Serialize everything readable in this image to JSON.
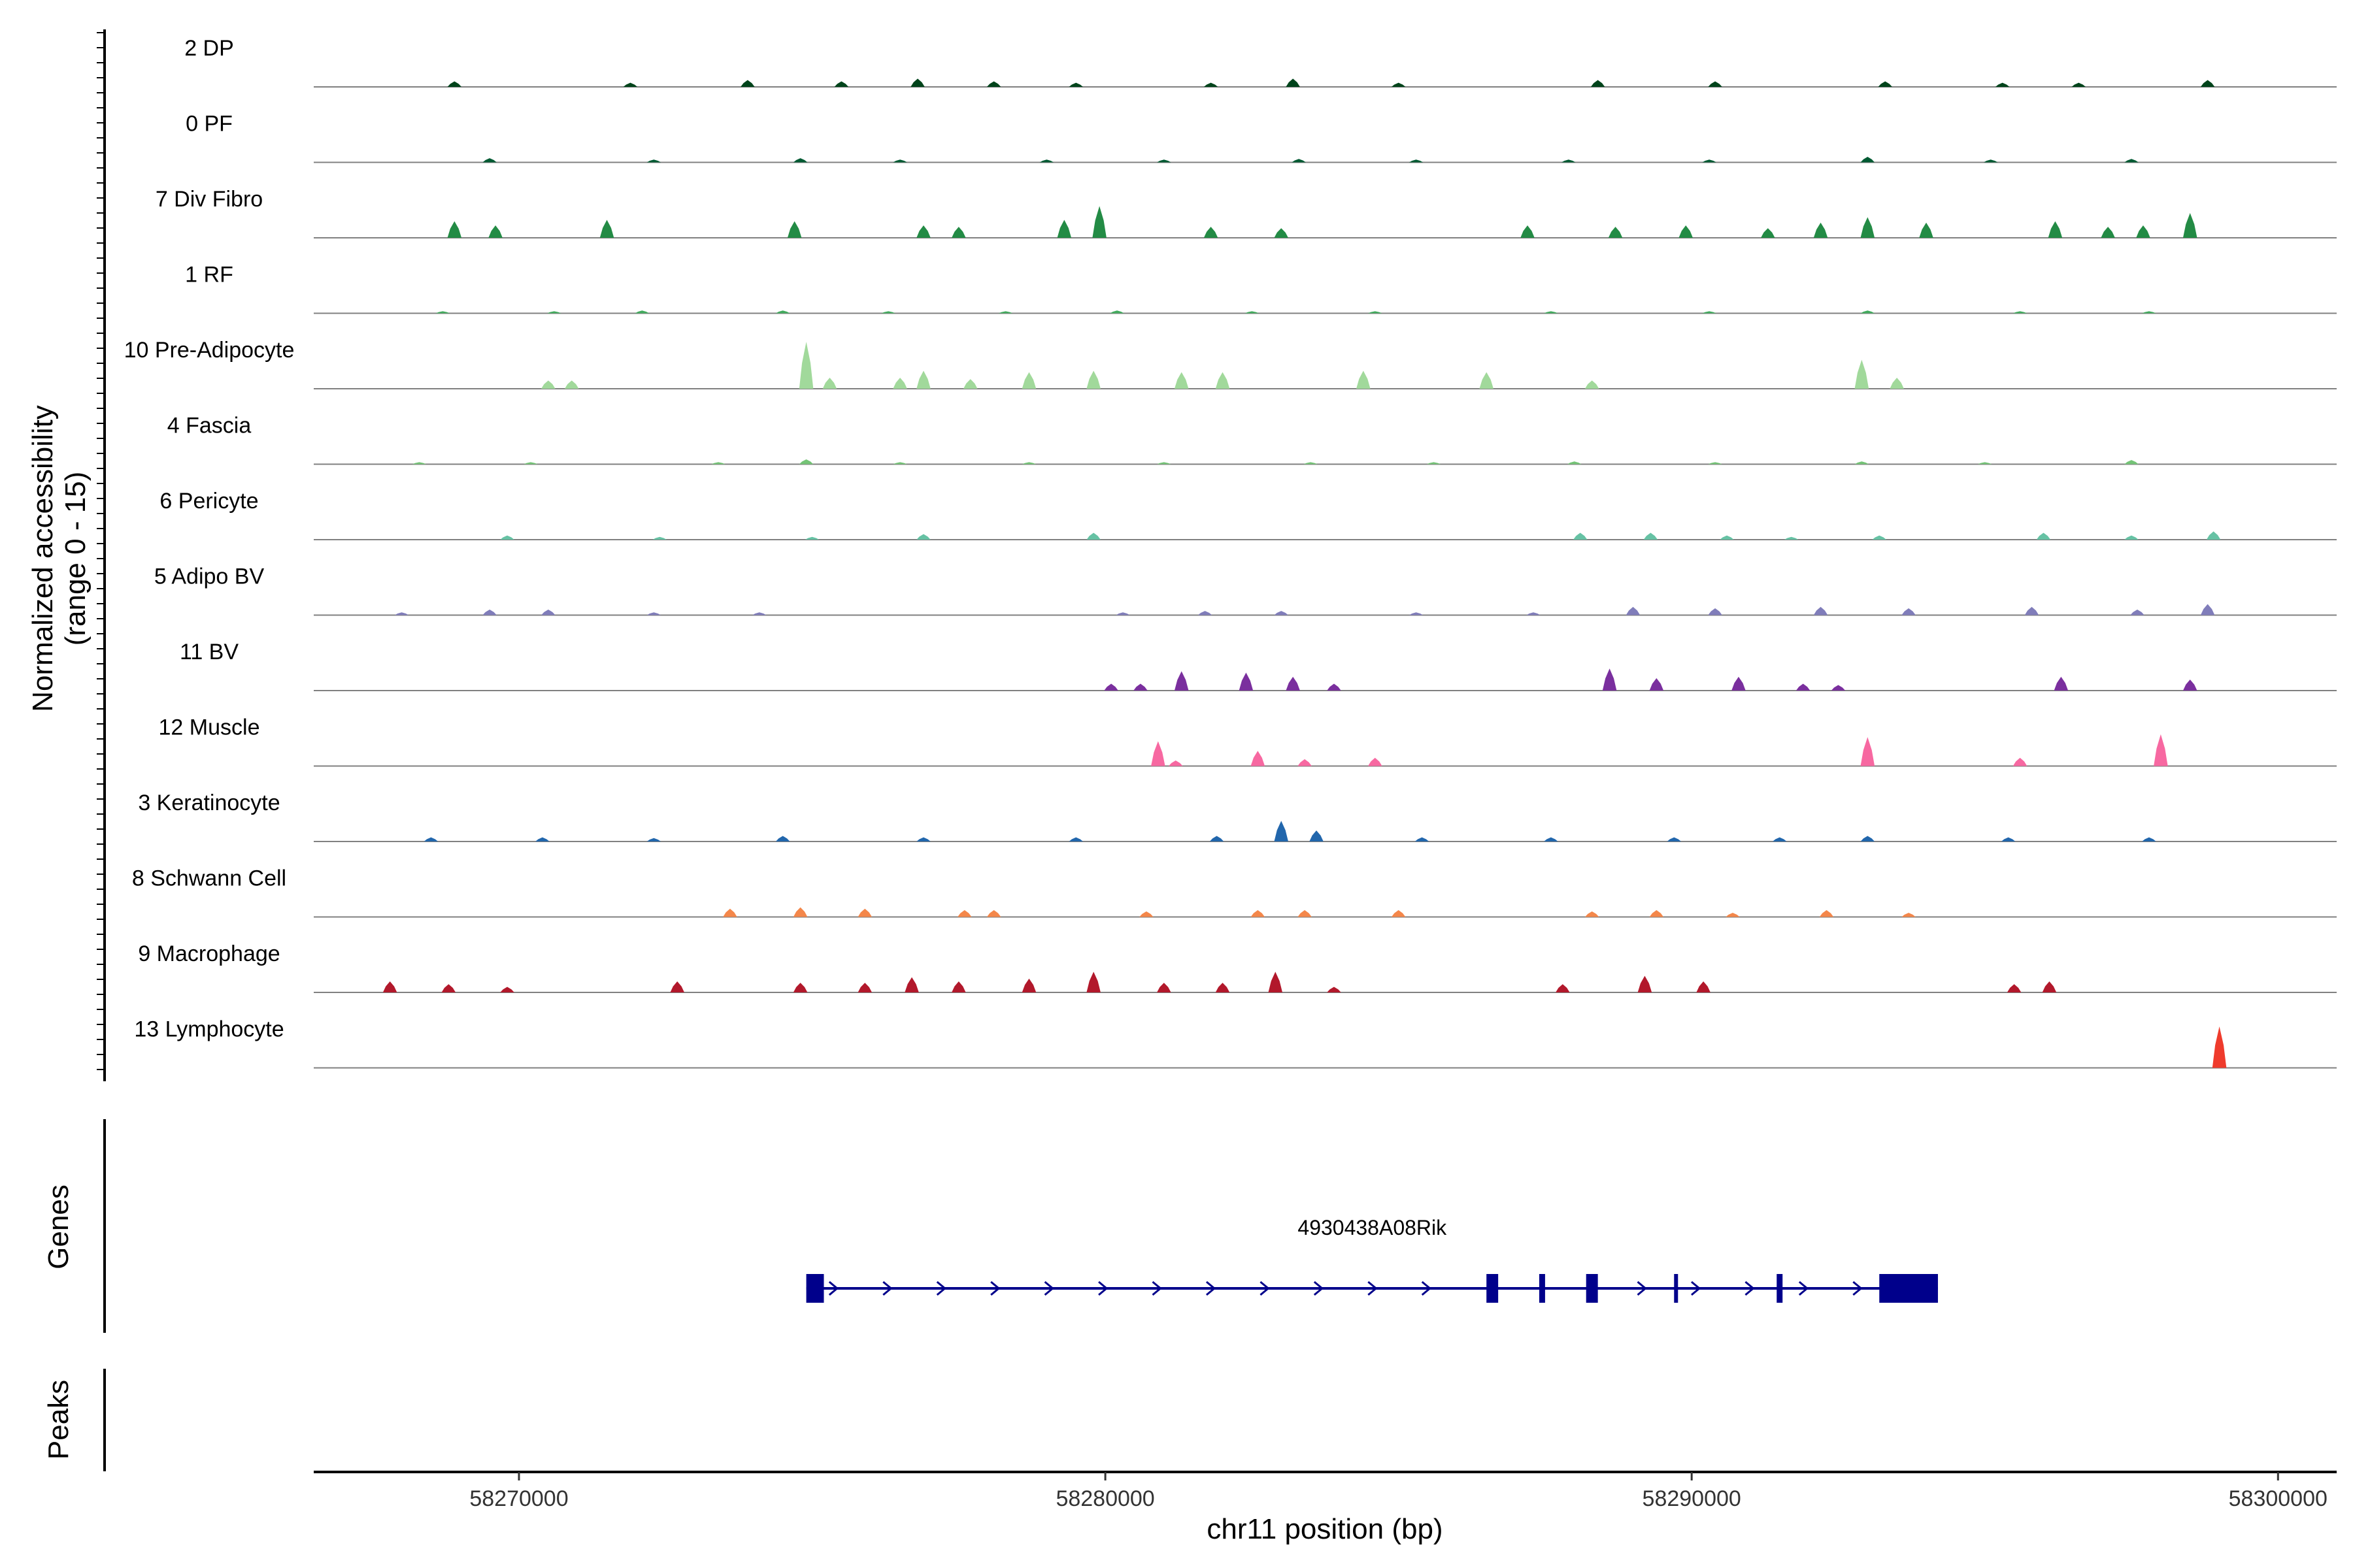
{
  "chart_data": {
    "type": "genome-browser-coverage",
    "xlabel": "chr11 position (bp)",
    "ylabel_line1": "Normalized accessibility",
    "ylabel_line2": "(range 0 - 15)",
    "yrange": [
      0,
      15
    ],
    "xlim": [
      58266500,
      58301000
    ],
    "xticks": [
      {
        "value": 58270000,
        "label": "58270000"
      },
      {
        "value": 58280000,
        "label": "58280000"
      },
      {
        "value": 58290000,
        "label": "58290000"
      },
      {
        "value": 58300000,
        "label": "58300000"
      }
    ],
    "genes_label": "Genes",
    "peaks_label": "Peaks",
    "gene": {
      "name": "4930438A08Rik",
      "start": 58274900,
      "end": 58294200,
      "strand": "+",
      "color": "#00008b",
      "exons": [
        [
          58274900,
          58275200
        ],
        [
          58286500,
          58286700
        ],
        [
          58287400,
          58287500
        ],
        [
          58288200,
          58288400
        ],
        [
          58289700,
          58289760
        ],
        [
          58291450,
          58291550
        ],
        [
          58293200,
          58294200
        ]
      ]
    },
    "tracks": [
      {
        "name": "2 DP",
        "color": "#00441b",
        "peaks": [
          [
            58268900,
            0.4
          ],
          [
            58271900,
            0.3
          ],
          [
            58273900,
            0.5
          ],
          [
            58275500,
            0.4
          ],
          [
            58276800,
            0.6
          ],
          [
            58278100,
            0.4
          ],
          [
            58279500,
            0.3
          ],
          [
            58281800,
            0.3
          ],
          [
            58283200,
            0.6
          ],
          [
            58285000,
            0.3
          ],
          [
            58288400,
            0.5
          ],
          [
            58290400,
            0.4
          ],
          [
            58293300,
            0.4
          ],
          [
            58295300,
            0.3
          ],
          [
            58296600,
            0.3
          ],
          [
            58298800,
            0.5
          ]
        ]
      },
      {
        "name": "0 PF",
        "color": "#005a32",
        "peaks": [
          [
            58269500,
            0.3
          ],
          [
            58272300,
            0.2
          ],
          [
            58274800,
            0.3
          ],
          [
            58276500,
            0.2
          ],
          [
            58279000,
            0.2
          ],
          [
            58281000,
            0.2
          ],
          [
            58283300,
            0.25
          ],
          [
            58285300,
            0.2
          ],
          [
            58287900,
            0.2
          ],
          [
            58290300,
            0.2
          ],
          [
            58293000,
            0.4
          ],
          [
            58295100,
            0.2
          ],
          [
            58297500,
            0.25
          ]
        ]
      },
      {
        "name": "7 Div Fibro",
        "color": "#238b45",
        "peaks": [
          [
            58268900,
            1.2
          ],
          [
            58269600,
            0.9
          ],
          [
            58271500,
            1.3
          ],
          [
            58274700,
            1.2
          ],
          [
            58276900,
            0.9
          ],
          [
            58277500,
            0.8
          ],
          [
            58279300,
            1.3
          ],
          [
            58279900,
            2.3
          ],
          [
            58281800,
            0.8
          ],
          [
            58283000,
            0.7
          ],
          [
            58287200,
            0.9
          ],
          [
            58288700,
            0.8
          ],
          [
            58289900,
            0.9
          ],
          [
            58291300,
            0.7
          ],
          [
            58292200,
            1.1
          ],
          [
            58293000,
            1.5
          ],
          [
            58294000,
            1.1
          ],
          [
            58296200,
            1.2
          ],
          [
            58297100,
            0.8
          ],
          [
            58297700,
            0.9
          ],
          [
            58298500,
            1.8
          ]
        ]
      },
      {
        "name": "1 RF",
        "color": "#41ab5d",
        "peaks": [
          [
            58268700,
            0.15
          ],
          [
            58270600,
            0.15
          ],
          [
            58272100,
            0.2
          ],
          [
            58274500,
            0.2
          ],
          [
            58276300,
            0.15
          ],
          [
            58278300,
            0.15
          ],
          [
            58280200,
            0.2
          ],
          [
            58282500,
            0.15
          ],
          [
            58284600,
            0.15
          ],
          [
            58287600,
            0.15
          ],
          [
            58290300,
            0.15
          ],
          [
            58293000,
            0.2
          ],
          [
            58295600,
            0.15
          ],
          [
            58297800,
            0.15
          ]
        ]
      },
      {
        "name": "10 Pre-Adipocyte",
        "color": "#a1d99b",
        "peaks": [
          [
            58270500,
            0.6
          ],
          [
            58270900,
            0.6
          ],
          [
            58274900,
            3.4
          ],
          [
            58275300,
            0.8
          ],
          [
            58276500,
            0.8
          ],
          [
            58276900,
            1.3
          ],
          [
            58277700,
            0.7
          ],
          [
            58278700,
            1.2
          ],
          [
            58279800,
            1.3
          ],
          [
            58281300,
            1.2
          ],
          [
            58282000,
            1.2
          ],
          [
            58284400,
            1.3
          ],
          [
            58286500,
            1.2
          ],
          [
            58288300,
            0.6
          ],
          [
            58292900,
            2.1
          ],
          [
            58293500,
            0.8
          ]
        ]
      },
      {
        "name": "4 Fascia",
        "color": "#74c476",
        "peaks": [
          [
            58268300,
            0.15
          ],
          [
            58270200,
            0.15
          ],
          [
            58273400,
            0.15
          ],
          [
            58274900,
            0.35
          ],
          [
            58276500,
            0.15
          ],
          [
            58278700,
            0.15
          ],
          [
            58281000,
            0.15
          ],
          [
            58283500,
            0.15
          ],
          [
            58285600,
            0.15
          ],
          [
            58288000,
            0.2
          ],
          [
            58290400,
            0.15
          ],
          [
            58292900,
            0.2
          ],
          [
            58295000,
            0.15
          ],
          [
            58297500,
            0.3
          ]
        ]
      },
      {
        "name": "6 Pericyte",
        "color": "#66c2a4",
        "peaks": [
          [
            58269800,
            0.3
          ],
          [
            58272400,
            0.2
          ],
          [
            58275000,
            0.2
          ],
          [
            58276900,
            0.4
          ],
          [
            58279800,
            0.5
          ],
          [
            58288100,
            0.5
          ],
          [
            58289300,
            0.5
          ],
          [
            58290600,
            0.3
          ],
          [
            58291700,
            0.2
          ],
          [
            58293200,
            0.3
          ],
          [
            58296000,
            0.5
          ],
          [
            58297500,
            0.3
          ],
          [
            58298900,
            0.6
          ]
        ]
      },
      {
        "name": "5 Adipo BV",
        "color": "#807dba",
        "peaks": [
          [
            58268000,
            0.2
          ],
          [
            58269500,
            0.4
          ],
          [
            58270500,
            0.4
          ],
          [
            58272300,
            0.2
          ],
          [
            58274100,
            0.2
          ],
          [
            58280300,
            0.2
          ],
          [
            58281700,
            0.3
          ],
          [
            58283000,
            0.3
          ],
          [
            58285300,
            0.2
          ],
          [
            58287300,
            0.2
          ],
          [
            58289000,
            0.6
          ],
          [
            58290400,
            0.5
          ],
          [
            58292200,
            0.6
          ],
          [
            58293700,
            0.5
          ],
          [
            58295800,
            0.6
          ],
          [
            58297600,
            0.4
          ],
          [
            58298800,
            0.8
          ]
        ]
      },
      {
        "name": "11 BV",
        "color": "#7a2f9e",
        "peaks": [
          [
            58280100,
            0.5
          ],
          [
            58280600,
            0.5
          ],
          [
            58281300,
            1.4
          ],
          [
            58282400,
            1.3
          ],
          [
            58283200,
            1.0
          ],
          [
            58283900,
            0.5
          ],
          [
            58288600,
            1.6
          ],
          [
            58289400,
            0.9
          ],
          [
            58290800,
            1.0
          ],
          [
            58291900,
            0.5
          ],
          [
            58292500,
            0.4
          ],
          [
            58296300,
            1.0
          ],
          [
            58298500,
            0.8
          ]
        ]
      },
      {
        "name": "12 Muscle",
        "color": "#f768a1",
        "peaks": [
          [
            58280900,
            1.8
          ],
          [
            58281200,
            0.4
          ],
          [
            58282600,
            1.1
          ],
          [
            58283400,
            0.5
          ],
          [
            58284600,
            0.6
          ],
          [
            58293000,
            2.1
          ],
          [
            58295600,
            0.6
          ],
          [
            58298000,
            2.3
          ]
        ]
      },
      {
        "name": "3 Keratinocyte",
        "color": "#2166ac",
        "peaks": [
          [
            58268500,
            0.3
          ],
          [
            58270400,
            0.3
          ],
          [
            58272300,
            0.25
          ],
          [
            58274500,
            0.4
          ],
          [
            58276900,
            0.3
          ],
          [
            58279500,
            0.3
          ],
          [
            58281900,
            0.4
          ],
          [
            58283000,
            1.5
          ],
          [
            58283600,
            0.8
          ],
          [
            58285400,
            0.3
          ],
          [
            58287600,
            0.3
          ],
          [
            58289700,
            0.3
          ],
          [
            58291500,
            0.3
          ],
          [
            58293000,
            0.4
          ],
          [
            58295400,
            0.3
          ],
          [
            58297800,
            0.3
          ]
        ]
      },
      {
        "name": "8 Schwann Cell",
        "color": "#f4874a",
        "peaks": [
          [
            58273600,
            0.6
          ],
          [
            58274800,
            0.7
          ],
          [
            58275900,
            0.6
          ],
          [
            58277600,
            0.5
          ],
          [
            58278100,
            0.5
          ],
          [
            58280700,
            0.4
          ],
          [
            58282600,
            0.5
          ],
          [
            58283400,
            0.5
          ],
          [
            58285000,
            0.5
          ],
          [
            58288300,
            0.4
          ],
          [
            58289400,
            0.5
          ],
          [
            58290700,
            0.3
          ],
          [
            58292300,
            0.5
          ],
          [
            58293700,
            0.3
          ]
        ]
      },
      {
        "name": "9 Macrophage",
        "color": "#b2182b",
        "peaks": [
          [
            58267800,
            0.8
          ],
          [
            58268800,
            0.6
          ],
          [
            58269800,
            0.4
          ],
          [
            58272700,
            0.8
          ],
          [
            58274800,
            0.7
          ],
          [
            58275900,
            0.7
          ],
          [
            58276700,
            1.1
          ],
          [
            58277500,
            0.8
          ],
          [
            58278700,
            1.0
          ],
          [
            58279800,
            1.5
          ],
          [
            58281000,
            0.7
          ],
          [
            58282000,
            0.7
          ],
          [
            58282900,
            1.5
          ],
          [
            58283900,
            0.4
          ],
          [
            58287800,
            0.6
          ],
          [
            58289200,
            1.2
          ],
          [
            58290200,
            0.8
          ],
          [
            58295500,
            0.6
          ],
          [
            58296100,
            0.8
          ]
        ]
      },
      {
        "name": "13 Lymphocyte",
        "color": "#ef3b2c",
        "peaks": [
          [
            58299000,
            3.0
          ]
        ]
      }
    ]
  }
}
